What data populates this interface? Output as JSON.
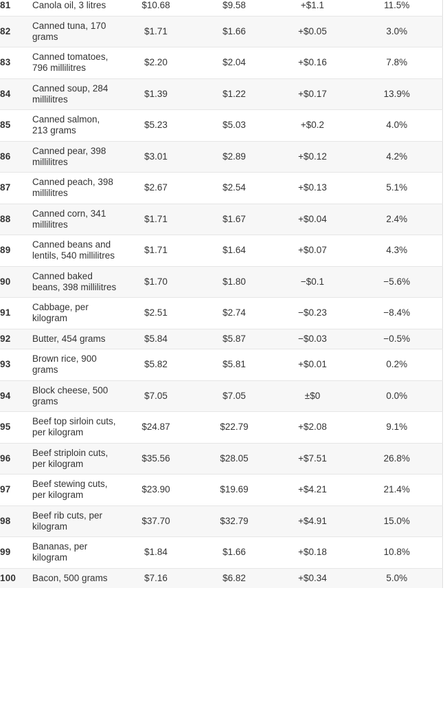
{
  "colors": {
    "stripe": "#f7f7f7",
    "row_border": "#e6e6e6",
    "table_right_border": "#dedede",
    "text": "#333333",
    "background": "#ffffff"
  },
  "chart_data": {
    "type": "table",
    "title": "",
    "columns": [
      "rank",
      "item",
      "price_current",
      "price_previous",
      "change",
      "percent_change"
    ],
    "rows": [
      [
        "81",
        "Canola oil, 3 litres",
        "$10.68",
        "$9.58",
        "+$1.1",
        "11.5%"
      ],
      [
        "82",
        "Canned tuna, 170 grams",
        "$1.71",
        "$1.66",
        "+$0.05",
        "3.0%"
      ],
      [
        "83",
        "Canned tomatoes, 796 millilitres",
        "$2.20",
        "$2.04",
        "+$0.16",
        "7.8%"
      ],
      [
        "84",
        "Canned soup, 284 millilitres",
        "$1.39",
        "$1.22",
        "+$0.17",
        "13.9%"
      ],
      [
        "85",
        "Canned salmon, 213 grams",
        "$5.23",
        "$5.03",
        "+$0.2",
        "4.0%"
      ],
      [
        "86",
        "Canned pear, 398 millilitres",
        "$3.01",
        "$2.89",
        "+$0.12",
        "4.2%"
      ],
      [
        "87",
        "Canned peach, 398 millilitres",
        "$2.67",
        "$2.54",
        "+$0.13",
        "5.1%"
      ],
      [
        "88",
        "Canned corn, 341 millilitres",
        "$1.71",
        "$1.67",
        "+$0.04",
        "2.4%"
      ],
      [
        "89",
        "Canned beans and lentils, 540 millilitres",
        "$1.71",
        "$1.64",
        "+$0.07",
        "4.3%"
      ],
      [
        "90",
        "Canned baked beans, 398 millilitres",
        "$1.70",
        "$1.80",
        "−$0.1",
        "−5.6%"
      ],
      [
        "91",
        "Cabbage, per kilogram",
        "$2.51",
        "$2.74",
        "−$0.23",
        "−8.4%"
      ],
      [
        "92",
        "Butter, 454 grams",
        "$5.84",
        "$5.87",
        "−$0.03",
        "−0.5%"
      ],
      [
        "93",
        "Brown rice, 900 grams",
        "$5.82",
        "$5.81",
        "+$0.01",
        "0.2%"
      ],
      [
        "94",
        "Block cheese, 500 grams",
        "$7.05",
        "$7.05",
        "±$0",
        "0.0%"
      ],
      [
        "95",
        "Beef top sirloin cuts, per kilogram",
        "$24.87",
        "$22.79",
        "+$2.08",
        "9.1%"
      ],
      [
        "96",
        "Beef striploin cuts, per kilogram",
        "$35.56",
        "$28.05",
        "+$7.51",
        "26.8%"
      ],
      [
        "97",
        "Beef stewing cuts, per kilogram",
        "$23.90",
        "$19.69",
        "+$4.21",
        "21.4%"
      ],
      [
        "98",
        "Beef rib cuts, per kilogram",
        "$37.70",
        "$32.79",
        "+$4.91",
        "15.0%"
      ],
      [
        "99",
        "Bananas, per kilogram",
        "$1.84",
        "$1.66",
        "+$0.18",
        "10.8%"
      ],
      [
        "100",
        "Bacon, 500 grams",
        "$7.16",
        "$6.82",
        "+$0.34",
        "5.0%"
      ]
    ]
  }
}
